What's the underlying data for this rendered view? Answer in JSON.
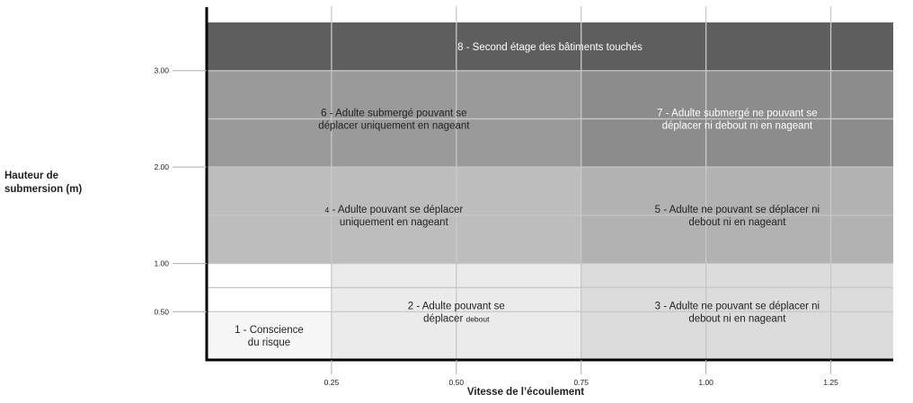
{
  "chart_data": {
    "type": "heatmap",
    "title": "",
    "xlabel": "Vitesse de l’écoulement",
    "ylabel_lines": [
      "Hauteur de",
      "submersion (m)"
    ],
    "xlim": [
      0,
      1.375
    ],
    "ylim": [
      0,
      3.5
    ],
    "x_ticks": [
      {
        "value": 0.25,
        "label": "0.25"
      },
      {
        "value": 0.5,
        "label": "0.50"
      },
      {
        "value": 0.75,
        "label": "0.75"
      },
      {
        "value": 1.0,
        "label": "1.00"
      },
      {
        "value": 1.25,
        "label": "1.25"
      }
    ],
    "y_ticks": [
      {
        "value": 0.5,
        "label": "0.50"
      },
      {
        "value": 1.0,
        "label": "1.00"
      },
      {
        "value": 2.0,
        "label": "2.00"
      },
      {
        "value": 3.0,
        "label": "3.00"
      }
    ],
    "grid": true,
    "zones": [
      {
        "id": 1,
        "x": [
          0,
          0.25
        ],
        "y": [
          0,
          0.5
        ],
        "color": "#f7f7f7",
        "text_color": "#222222",
        "lines": [
          {
            "text": "1 - Conscience"
          },
          {
            "text": "du risque"
          }
        ]
      },
      {
        "id": 2,
        "x": [
          0.25,
          0.75
        ],
        "y": [
          0,
          1.0
        ],
        "color": "#ebebeb",
        "text_color": "#222222",
        "lines": [
          {
            "text": "2 - Adulte pouvant se"
          },
          {
            "text": "déplacer ",
            "small": "debout"
          }
        ]
      },
      {
        "id": 3,
        "x": [
          0.75,
          1.375
        ],
        "y": [
          0,
          1.0
        ],
        "color": "#dcdcdc",
        "text_color": "#222222",
        "lines": [
          {
            "text": "3 - Adulte ne pouvant se déplacer ni"
          },
          {
            "text": "debout ni en nageant"
          }
        ]
      },
      {
        "id": 4,
        "x": [
          0,
          0.75
        ],
        "y": [
          1.0,
          2.0
        ],
        "color": "#bdbdbd",
        "text_color": "#222222",
        "lines": [
          {
            "small": "4",
            "text": " - Adulte pouvant se déplacer"
          },
          {
            "text": "uniquement en nageant"
          }
        ]
      },
      {
        "id": 5,
        "x": [
          0.75,
          1.375
        ],
        "y": [
          1.0,
          2.0
        ],
        "color": "#b2b2b2",
        "text_color": "#222222",
        "lines": [
          {
            "text": "5 - Adulte ne pouvant se déplacer ni"
          },
          {
            "text": "debout ni en nageant"
          }
        ]
      },
      {
        "id": 6,
        "x": [
          0,
          0.75
        ],
        "y": [
          2.0,
          3.0
        ],
        "color": "#9a9a9a",
        "text_color": "#222222",
        "lines": [
          {
            "text": "6 - Adulte submergé pouvant se"
          },
          {
            "text": "déplacer uniquement en nageant"
          }
        ]
      },
      {
        "id": 7,
        "x": [
          0.75,
          1.375
        ],
        "y": [
          2.0,
          3.0
        ],
        "color": "#8c8c8c",
        "text_color": "#ffffff",
        "lines": [
          {
            "text": "7 - Adulte submergé ne pouvant se"
          },
          {
            "text": "déplacer ni debout ni en nageant"
          }
        ]
      },
      {
        "id": 8,
        "x": [
          0,
          1.375
        ],
        "y": [
          3.0,
          3.5
        ],
        "color": "#5e5e5e",
        "text_color": "#ffffff",
        "lines": [
          {
            "text": "8 - Second étage des bâtiments touchés"
          }
        ]
      }
    ],
    "colors": {
      "axis": "#000000",
      "grid": "#c8c8c8",
      "tick_label": "#222222"
    }
  }
}
